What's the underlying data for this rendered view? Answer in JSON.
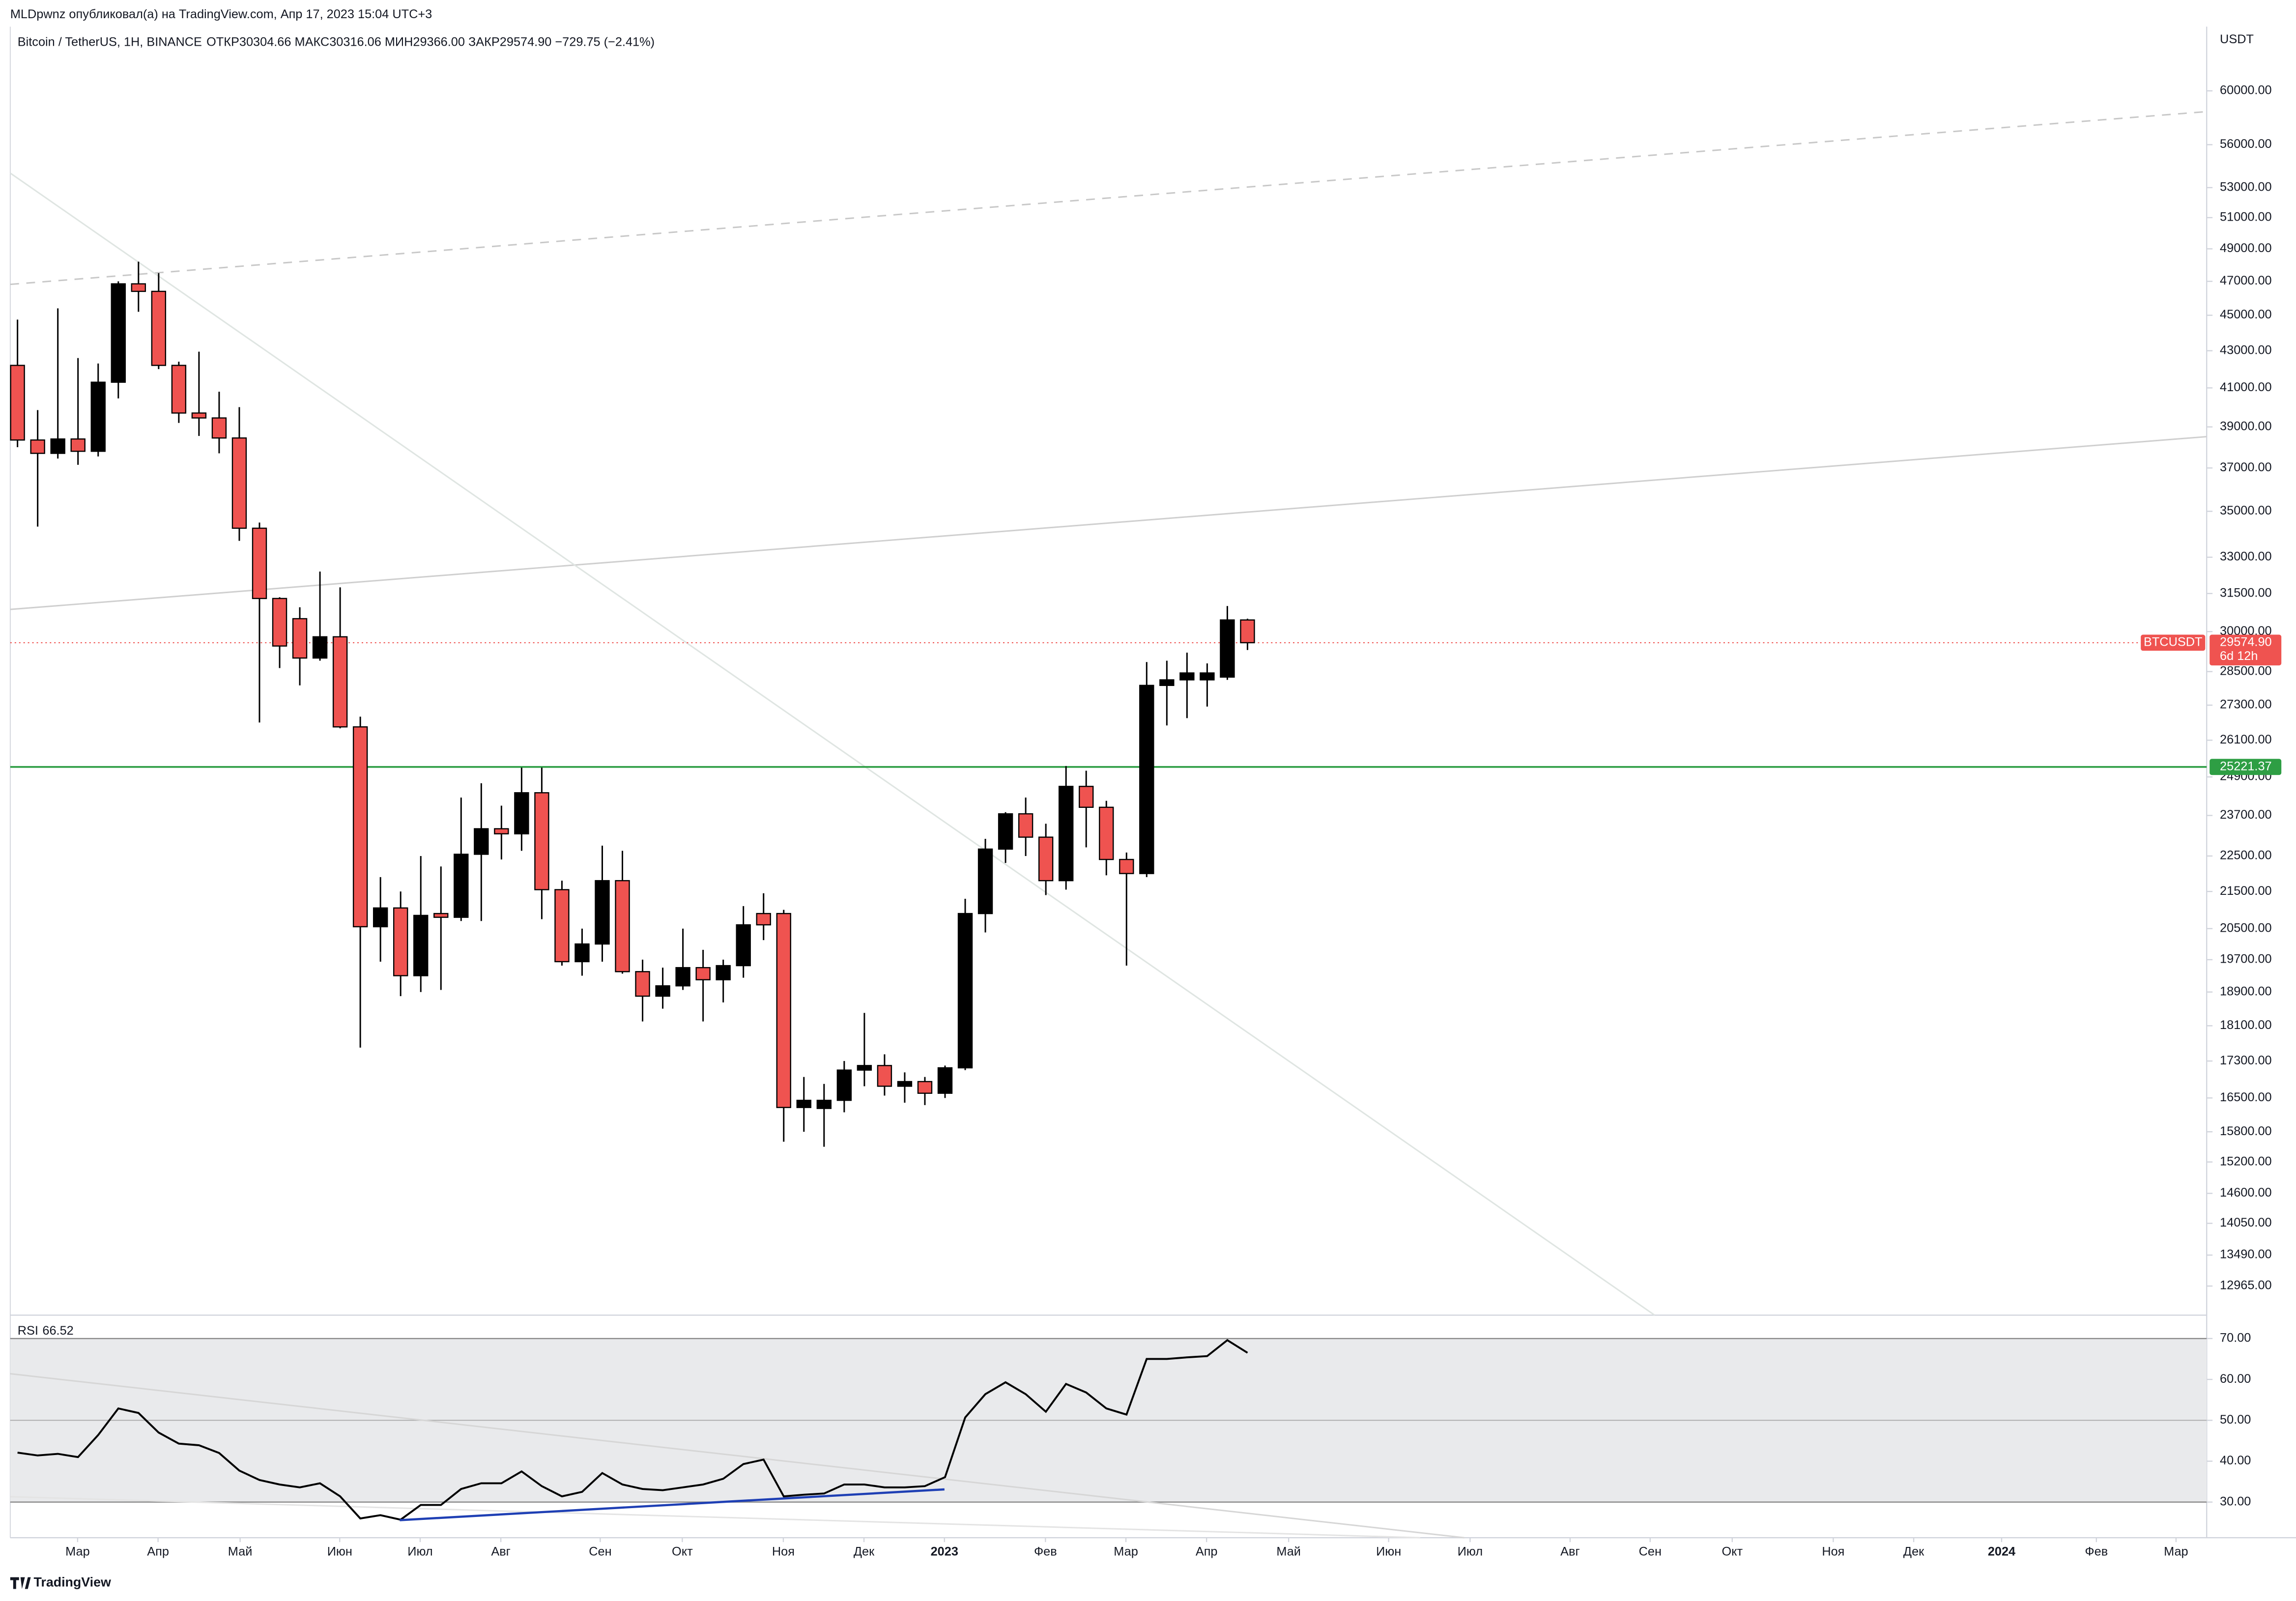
{
  "header": "MLDpwnz опубликовал(а) на TradingView.com, Апр 17, 2023 15:04 UTC+3",
  "footer": "TradingView",
  "chart_data": [
    {
      "type": "candlestick",
      "title": "Bitcoin / TetherUS, 1H, BINANCE",
      "subtitle": "ОТКР30304.66 МАКС30316.06 МИН29366.00 ЗАКР29574.90 −729.75 (−2.41%)",
      "y_axis_label": "USDT",
      "log_scale": true,
      "up_color": "#000000",
      "down_color": "#ef5350",
      "open": [
        42200,
        38350,
        37700,
        38400,
        37800,
        41300,
        46850,
        46400,
        42200,
        39700,
        39450,
        38450,
        34250,
        31300,
        30500,
        29000,
        29800,
        26550,
        20550,
        21050,
        19300,
        20900,
        20800,
        22550,
        23300,
        23150,
        24400,
        21550,
        19650,
        20100,
        21800,
        19400,
        18800,
        19050,
        19500,
        19200,
        19550,
        20900,
        20900,
        16300,
        16280,
        16450,
        17100,
        17200,
        16750,
        16850,
        16600,
        17150,
        20900,
        22700,
        23750,
        23050,
        21800,
        24600,
        23950,
        22400,
        22000,
        28000,
        28200,
        28200,
        28300,
        30450
      ],
      "high": [
        44750,
        39850,
        45400,
        42600,
        42300,
        47000,
        48200,
        47500,
        42400,
        42950,
        40800,
        40000,
        34500,
        31350,
        30950,
        32400,
        31750,
        26900,
        21900,
        21500,
        22500,
        22200,
        24250,
        24700,
        24000,
        25200,
        25200,
        21800,
        20500,
        22800,
        22650,
        19700,
        19500,
        20500,
        19950,
        19700,
        21100,
        21450,
        21000,
        16950,
        16800,
        17300,
        18400,
        17450,
        17050,
        16950,
        17200,
        21300,
        23000,
        23800,
        24250,
        23450,
        25250,
        25100,
        24150,
        22600,
        28850,
        28900,
        29200,
        28800,
        31000,
        30500
      ],
      "low": [
        38000,
        34320,
        37450,
        37150,
        37550,
        40450,
        45200,
        42000,
        39200,
        38550,
        37700,
        33700,
        26700,
        28630,
        28000,
        28900,
        26500,
        17600,
        19650,
        18800,
        18900,
        18950,
        20700,
        20700,
        22400,
        22650,
        20750,
        19550,
        19300,
        19650,
        19350,
        18200,
        18500,
        18950,
        18200,
        18650,
        19250,
        20200,
        15600,
        15800,
        15500,
        16200,
        16750,
        16550,
        16400,
        16350,
        16500,
        17100,
        20400,
        22300,
        22500,
        21400,
        21550,
        22750,
        21950,
        19550,
        21900,
        26600,
        26850,
        27250,
        28200,
        29300
      ],
      "close": [
        38350,
        37700,
        38400,
        37800,
        41300,
        46850,
        46400,
        42200,
        39700,
        39450,
        38450,
        34250,
        31300,
        29450,
        29000,
        29800,
        26550,
        20550,
        21050,
        19300,
        20850,
        20800,
        22550,
        23300,
        23150,
        24400,
        21550,
        19650,
        20100,
        21800,
        19400,
        18800,
        19050,
        19500,
        19200,
        19550,
        20600,
        20600,
        16300,
        16450,
        16450,
        17100,
        17200,
        16750,
        16850,
        16600,
        17150,
        20900,
        22700,
        23750,
        23050,
        21800,
        24600,
        23950,
        22400,
        22000,
        28000,
        28200,
        28450,
        28450,
        30450,
        29575
      ],
      "xlim": [
        -0.36,
        108.57
      ],
      "xticks": [
        {
          "value": 2.98,
          "label": "Мар"
        },
        {
          "value": 6.97,
          "label": "Апр"
        },
        {
          "value": 11.04,
          "label": "Май"
        },
        {
          "value": 15.98,
          "label": "Июн"
        },
        {
          "value": 19.97,
          "label": "Июл"
        },
        {
          "value": 23.97,
          "label": "Авг"
        },
        {
          "value": 28.9,
          "label": "Сен"
        },
        {
          "value": 32.97,
          "label": "Окт"
        },
        {
          "value": 37.98,
          "label": "Ноя"
        },
        {
          "value": 41.98,
          "label": "Дек"
        },
        {
          "value": 45.97,
          "label": "2023"
        },
        {
          "value": 50.98,
          "label": "Фев"
        },
        {
          "value": 54.97,
          "label": "Мар"
        },
        {
          "value": 58.97,
          "label": "Апр"
        },
        {
          "value": 63.04,
          "label": "Май"
        },
        {
          "value": 68,
          "label": "Июн"
        },
        {
          "value": 72.04,
          "label": "Июл"
        },
        {
          "value": 77,
          "label": "Авг"
        },
        {
          "value": 80.97,
          "label": "Сен"
        },
        {
          "value": 85.04,
          "label": "Окт"
        },
        {
          "value": 90.05,
          "label": "Ноя"
        },
        {
          "value": 94.04,
          "label": "Дек"
        },
        {
          "value": 98.4,
          "label": "2024"
        },
        {
          "value": 103.1,
          "label": "Фев"
        },
        {
          "value": 107.05,
          "label": "Мар"
        }
      ],
      "ylim": [
        12490,
        64900
      ],
      "yticks": [
        {
          "value": 60000,
          "label": "60000.00"
        },
        {
          "value": 56000,
          "label": "56000.00"
        },
        {
          "value": 53000,
          "label": "53000.00"
        },
        {
          "value": 51000,
          "label": "51000.00"
        },
        {
          "value": 49000,
          "label": "49000.00"
        },
        {
          "value": 47000,
          "label": "47000.00"
        },
        {
          "value": 45000,
          "label": "45000.00"
        },
        {
          "value": 43000,
          "label": "43000.00"
        },
        {
          "value": 41000,
          "label": "41000.00"
        },
        {
          "value": 39000,
          "label": "39000.00"
        },
        {
          "value": 37000,
          "label": "37000.00"
        },
        {
          "value": 35000,
          "label": "35000.00"
        },
        {
          "value": 33000,
          "label": "33000.00"
        },
        {
          "value": 31500,
          "label": "31500.00"
        },
        {
          "value": 30000,
          "label": "30000.00"
        },
        {
          "value": 28500,
          "label": "28500.00"
        },
        {
          "value": 27300,
          "label": "27300.00"
        },
        {
          "value": 26100,
          "label": "26100.00"
        },
        {
          "value": 24900,
          "label": "24900.00"
        },
        {
          "value": 23700,
          "label": "23700.00"
        },
        {
          "value": 22500,
          "label": "22500.00"
        },
        {
          "value": 21500,
          "label": "21500.00"
        },
        {
          "value": 20500,
          "label": "20500.00"
        },
        {
          "value": 19700,
          "label": "19700.00"
        },
        {
          "value": 18900,
          "label": "18900.00"
        },
        {
          "value": 18100,
          "label": "18100.00"
        },
        {
          "value": 17300,
          "label": "17300.00"
        },
        {
          "value": 16500,
          "label": "16500.00"
        },
        {
          "value": 15800,
          "label": "15800.00"
        },
        {
          "value": 15200,
          "label": "15200.00"
        },
        {
          "value": 14600,
          "label": "14600.00"
        },
        {
          "value": 14050,
          "label": "14050.00"
        },
        {
          "value": 13490,
          "label": "13490.00"
        },
        {
          "value": 12965,
          "label": "12965.00"
        }
      ],
      "price_lines": [
        {
          "name": "BTCUSDT",
          "value": 29574.9,
          "label": "29574.90",
          "countdown": "6d 12h",
          "color": "#ef5350"
        },
        {
          "value": 25221.37,
          "label": "25221.37",
          "color": "#2e9e44"
        }
      ]
    },
    {
      "type": "line",
      "name": "RSI",
      "color": "#000000",
      "band": [
        30,
        70
      ],
      "band_color": "#e9eaec",
      "values": [
        42.1,
        41.4,
        41.8,
        41,
        46.4,
        52.9,
        51.8,
        47,
        44.3,
        43.9,
        42,
        37.7,
        35.4,
        34.3,
        33.6,
        34.6,
        31.4,
        26,
        26.8,
        25.7,
        29.3,
        29.3,
        33.2,
        34.6,
        34.6,
        37.5,
        33.9,
        31.4,
        32.5,
        37.1,
        34.3,
        33.2,
        32.9,
        33.6,
        34.3,
        35.7,
        39.3,
        40.4,
        31.4,
        31.8,
        32.1,
        34.3,
        34.3,
        33.6,
        33.6,
        33.9,
        36.1,
        50.7,
        56.4,
        59.3,
        56.4,
        52.1,
        58.9,
        56.8,
        52.9,
        51.4,
        65,
        65,
        65.4,
        65.7,
        69.6,
        66.52
      ],
      "ylim": [
        22,
        75
      ],
      "yticks": [
        {
          "value": 70,
          "label": "70.00"
        },
        {
          "value": 60,
          "label": "60.00"
        },
        {
          "value": 50,
          "label": "50.00"
        },
        {
          "value": 40,
          "label": "40.00"
        },
        {
          "value": 30,
          "label": "30.00"
        }
      ]
    }
  ]
}
